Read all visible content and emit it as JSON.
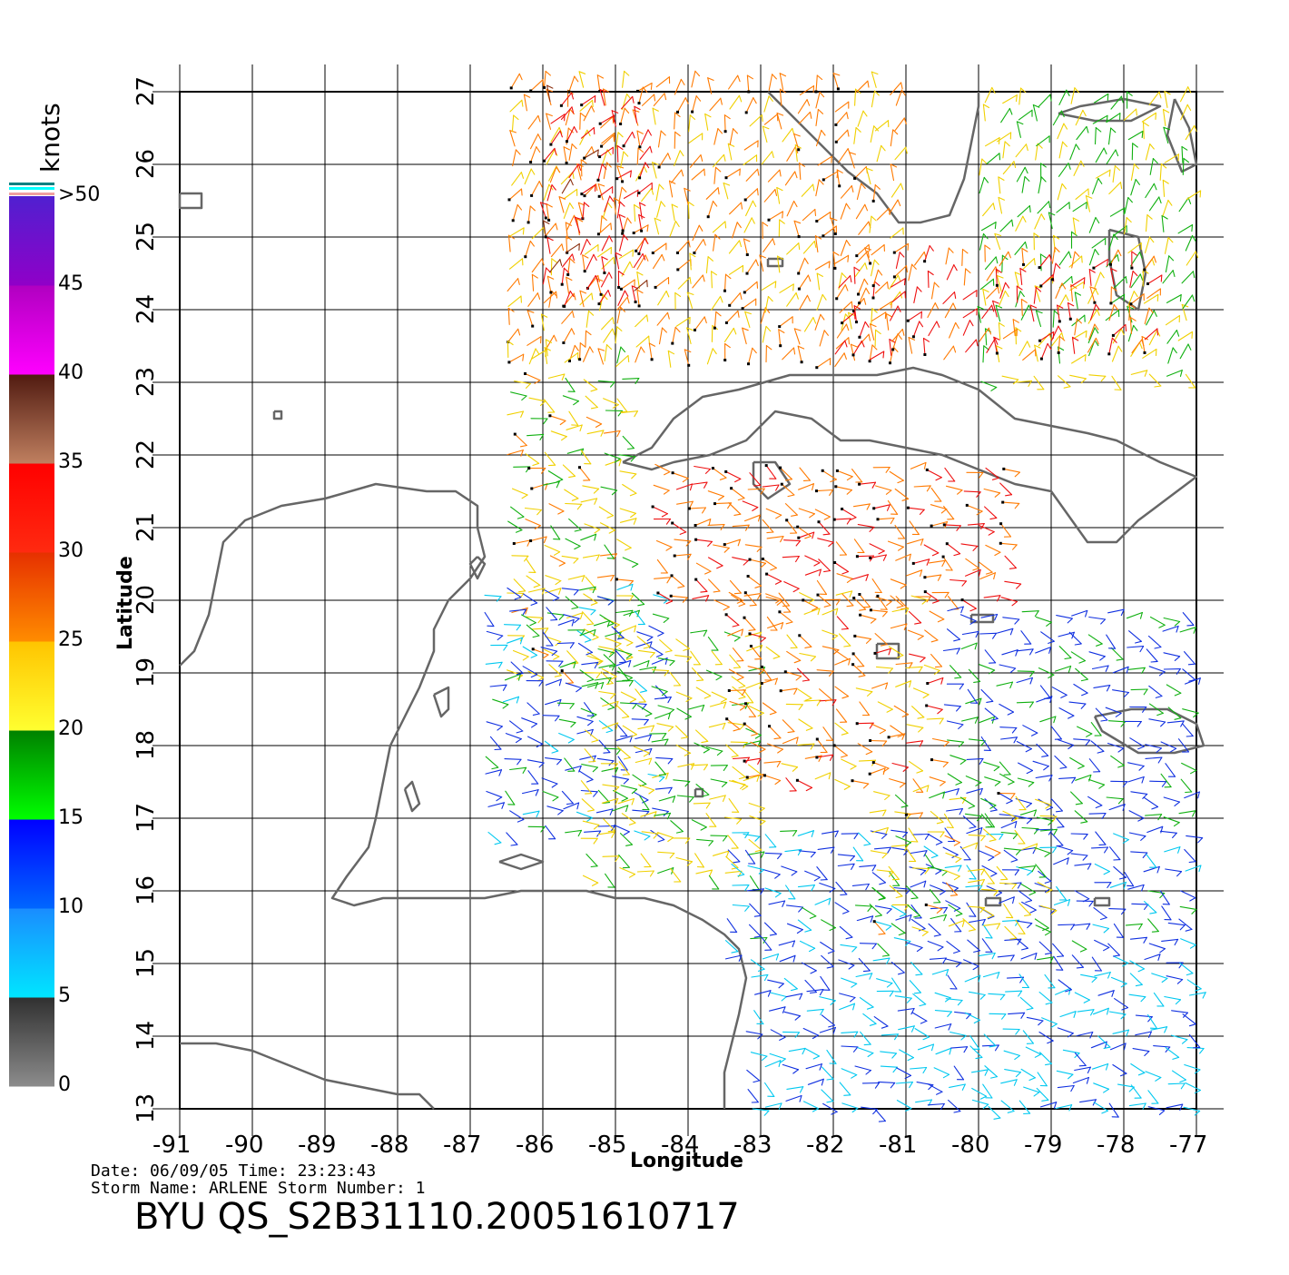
{
  "colorbar": {
    "unit": "knots",
    "labels": [
      "0",
      "5",
      "10",
      "15",
      "20",
      "25",
      "30",
      "35",
      "40",
      "45",
      ">50"
    ],
    "bands": [
      {
        "from": 0,
        "to": 5,
        "top": "#303030",
        "bottom": "#8c8c8c"
      },
      {
        "from": 5,
        "to": 10,
        "top": "#1a8cff",
        "bottom": "#00e6ff"
      },
      {
        "from": 10,
        "to": 15,
        "top": "#0000ff",
        "bottom": "#0066ff"
      },
      {
        "from": 15,
        "to": 20,
        "top": "#008000",
        "bottom": "#00ff00"
      },
      {
        "from": 20,
        "to": 25,
        "top": "#ffc400",
        "bottom": "#ffff30"
      },
      {
        "from": 25,
        "to": 30,
        "top": "#e63000",
        "bottom": "#ff8c00"
      },
      {
        "from": 30,
        "to": 35,
        "top": "#ff0000",
        "bottom": "#ff2a10"
      },
      {
        "from": 35,
        "to": 40,
        "top": "#501a10",
        "bottom": "#c08060"
      },
      {
        "from": 40,
        "to": 45,
        "top": "#b000c0",
        "bottom": "#ff00ff"
      },
      {
        "from": 45,
        "to": 50,
        "top": "#5020d0",
        "bottom": "#9000c8"
      }
    ]
  },
  "map": {
    "lon_min": -91,
    "lon_max": -77,
    "lat_min": 13,
    "lat_max": 27,
    "x_ticks": [
      "-91",
      "-90",
      "-89",
      "-88",
      "-87",
      "-86",
      "-85",
      "-84",
      "-83",
      "-82",
      "-81",
      "-80",
      "-79",
      "-78",
      "-77"
    ],
    "y_ticks": [
      "13",
      "14",
      "15",
      "16",
      "17",
      "18",
      "19",
      "20",
      "21",
      "22",
      "23",
      "24",
      "25",
      "26",
      "27"
    ],
    "xlabel": "Longitude",
    "ylabel": "Latitude",
    "coastline_color": "#666666",
    "flag_color": "#000000"
  },
  "info": {
    "date_line": "Date: 06/09/05   Time: 23:23:43",
    "storm_line": "Storm Name: ARLENE   Storm Number: 1",
    "title": "BYU QS_S2B31110.20051610717"
  },
  "coastlines": [
    {
      "name": "yucatan-central-america",
      "points": [
        [
          -91,
          19.1
        ],
        [
          -90.8,
          19.3
        ],
        [
          -90.6,
          19.8
        ],
        [
          -90.5,
          20.3
        ],
        [
          -90.4,
          20.8
        ],
        [
          -90.1,
          21.1
        ],
        [
          -89.6,
          21.3
        ],
        [
          -89.0,
          21.4
        ],
        [
          -88.3,
          21.6
        ],
        [
          -87.6,
          21.5
        ],
        [
          -87.2,
          21.5
        ],
        [
          -86.9,
          21.3
        ],
        [
          -86.9,
          21.0
        ],
        [
          -86.8,
          20.6
        ],
        [
          -87.0,
          20.3
        ],
        [
          -87.3,
          20.0
        ],
        [
          -87.5,
          19.6
        ],
        [
          -87.5,
          19.3
        ],
        [
          -87.7,
          18.8
        ],
        [
          -87.9,
          18.4
        ],
        [
          -88.1,
          18.0
        ],
        [
          -88.2,
          17.5
        ],
        [
          -88.3,
          17.0
        ],
        [
          -88.4,
          16.6
        ],
        [
          -88.7,
          16.2
        ],
        [
          -88.9,
          15.9
        ],
        [
          -88.6,
          15.8
        ],
        [
          -88.2,
          15.9
        ],
        [
          -87.8,
          15.9
        ],
        [
          -87.3,
          15.9
        ],
        [
          -86.8,
          15.9
        ],
        [
          -86.3,
          16.0
        ],
        [
          -85.9,
          16.0
        ],
        [
          -85.4,
          16.0
        ],
        [
          -85.0,
          15.9
        ],
        [
          -84.6,
          15.9
        ],
        [
          -84.2,
          15.8
        ],
        [
          -83.8,
          15.6
        ],
        [
          -83.5,
          15.4
        ],
        [
          -83.3,
          15.2
        ],
        [
          -83.2,
          14.8
        ],
        [
          -83.3,
          14.3
        ],
        [
          -83.4,
          13.9
        ],
        [
          -83.5,
          13.5
        ],
        [
          -83.5,
          13.0
        ]
      ]
    },
    {
      "name": "pacific-coast",
      "points": [
        [
          -91,
          13.9
        ],
        [
          -90.5,
          13.9
        ],
        [
          -90.0,
          13.8
        ],
        [
          -89.5,
          13.6
        ],
        [
          -89.0,
          13.4
        ],
        [
          -88.5,
          13.3
        ],
        [
          -88.0,
          13.2
        ],
        [
          -87.7,
          13.2
        ],
        [
          -87.5,
          13.0
        ]
      ]
    },
    {
      "name": "cuba",
      "points": [
        [
          -84.9,
          21.9
        ],
        [
          -84.5,
          22.1
        ],
        [
          -84.2,
          22.5
        ],
        [
          -83.8,
          22.8
        ],
        [
          -83.3,
          22.9
        ],
        [
          -82.6,
          23.1
        ],
        [
          -82.0,
          23.1
        ],
        [
          -81.4,
          23.1
        ],
        [
          -80.9,
          23.2
        ],
        [
          -80.5,
          23.1
        ],
        [
          -80.0,
          22.9
        ],
        [
          -79.5,
          22.5
        ],
        [
          -79.0,
          22.4
        ],
        [
          -78.5,
          22.3
        ],
        [
          -78.1,
          22.2
        ],
        [
          -77.5,
          21.9
        ],
        [
          -77.0,
          21.7
        ],
        [
          -77.4,
          21.4
        ],
        [
          -77.8,
          21.1
        ],
        [
          -78.1,
          20.8
        ],
        [
          -78.5,
          20.8
        ],
        [
          -79.0,
          21.5
        ],
        [
          -79.5,
          21.6
        ],
        [
          -80.0,
          21.8
        ],
        [
          -80.5,
          22.0
        ],
        [
          -81.0,
          22.1
        ],
        [
          -81.5,
          22.2
        ],
        [
          -81.9,
          22.2
        ],
        [
          -82.3,
          22.5
        ],
        [
          -82.8,
          22.6
        ],
        [
          -83.2,
          22.2
        ],
        [
          -83.7,
          22.0
        ],
        [
          -84.2,
          21.9
        ],
        [
          -84.5,
          21.8
        ],
        [
          -84.9,
          21.9
        ]
      ]
    },
    {
      "name": "florida",
      "points": [
        [
          -82.9,
          27.0
        ],
        [
          -82.6,
          26.7
        ],
        [
          -82.2,
          26.3
        ],
        [
          -81.8,
          25.9
        ],
        [
          -81.4,
          25.6
        ],
        [
          -81.1,
          25.2
        ],
        [
          -80.8,
          25.2
        ],
        [
          -80.4,
          25.3
        ],
        [
          -80.2,
          25.8
        ],
        [
          -80.1,
          26.3
        ],
        [
          -80.0,
          26.8
        ],
        [
          -80.0,
          27.0
        ]
      ]
    },
    {
      "name": "jamaica",
      "points": [
        [
          -78.4,
          18.4
        ],
        [
          -77.9,
          18.5
        ],
        [
          -77.4,
          18.5
        ],
        [
          -77.0,
          18.3
        ],
        [
          -76.9,
          18.0
        ],
        [
          -77.3,
          17.9
        ],
        [
          -77.8,
          17.9
        ],
        [
          -78.3,
          18.2
        ],
        [
          -78.4,
          18.4
        ]
      ]
    },
    {
      "name": "andros",
      "points": [
        [
          -78.2,
          25.1
        ],
        [
          -77.8,
          25.0
        ],
        [
          -77.7,
          24.5
        ],
        [
          -77.8,
          24.0
        ],
        [
          -78.1,
          24.2
        ],
        [
          -78.2,
          24.7
        ],
        [
          -78.2,
          25.1
        ]
      ]
    },
    {
      "name": "grand-bahama",
      "points": [
        [
          -78.9,
          26.7
        ],
        [
          -78.4,
          26.6
        ],
        [
          -77.9,
          26.6
        ],
        [
          -77.5,
          26.8
        ],
        [
          -78.0,
          26.9
        ],
        [
          -78.6,
          26.8
        ],
        [
          -78.9,
          26.7
        ]
      ]
    },
    {
      "name": "abaco",
      "points": [
        [
          -77.3,
          26.9
        ],
        [
          -77.1,
          26.5
        ],
        [
          -77.0,
          26.0
        ],
        [
          -77.2,
          25.9
        ],
        [
          -77.4,
          26.4
        ],
        [
          -77.3,
          26.9
        ]
      ]
    },
    {
      "name": "isla-juventud",
      "points": [
        [
          -83.1,
          21.9
        ],
        [
          -82.8,
          21.9
        ],
        [
          -82.6,
          21.6
        ],
        [
          -82.9,
          21.4
        ],
        [
          -83.1,
          21.6
        ],
        [
          -83.1,
          21.9
        ]
      ]
    },
    {
      "name": "grand-cayman",
      "points": [
        [
          -81.4,
          19.4
        ],
        [
          -81.1,
          19.4
        ],
        [
          -81.1,
          19.2
        ],
        [
          -81.4,
          19.2
        ],
        [
          -81.4,
          19.4
        ]
      ]
    },
    {
      "name": "cayman-brac",
      "points": [
        [
          -80.1,
          19.8
        ],
        [
          -79.8,
          19.8
        ],
        [
          -79.8,
          19.7
        ],
        [
          -80.1,
          19.7
        ],
        [
          -80.1,
          19.8
        ]
      ]
    },
    {
      "name": "cozumel",
      "points": [
        [
          -86.9,
          20.6
        ],
        [
          -86.8,
          20.5
        ],
        [
          -86.9,
          20.3
        ],
        [
          -87.0,
          20.5
        ],
        [
          -86.9,
          20.6
        ]
      ]
    },
    {
      "name": "bay-islands",
      "points": [
        [
          -86.6,
          16.4
        ],
        [
          -86.3,
          16.5
        ],
        [
          -86.0,
          16.4
        ],
        [
          -86.3,
          16.3
        ],
        [
          -86.6,
          16.4
        ]
      ]
    },
    {
      "name": "swan-islands",
      "points": [
        [
          -83.9,
          17.4
        ],
        [
          -83.8,
          17.4
        ],
        [
          -83.8,
          17.3
        ],
        [
          -83.9,
          17.3
        ],
        [
          -83.9,
          17.4
        ]
      ]
    },
    {
      "name": "turneffe",
      "points": [
        [
          -87.9,
          17.4
        ],
        [
          -87.8,
          17.5
        ],
        [
          -87.7,
          17.2
        ],
        [
          -87.8,
          17.1
        ],
        [
          -87.9,
          17.4
        ]
      ]
    },
    {
      "name": "banco-chinchorro",
      "points": [
        [
          -87.5,
          18.7
        ],
        [
          -87.3,
          18.8
        ],
        [
          -87.3,
          18.5
        ],
        [
          -87.4,
          18.4
        ],
        [
          -87.5,
          18.7
        ]
      ]
    },
    {
      "name": "dry-tortugas",
      "points": [
        [
          -82.9,
          24.7
        ],
        [
          -82.7,
          24.7
        ],
        [
          -82.7,
          24.6
        ],
        [
          -82.9,
          24.6
        ],
        [
          -82.9,
          24.7
        ]
      ]
    },
    {
      "name": "alacranes",
      "points": [
        [
          -89.7,
          22.6
        ],
        [
          -89.6,
          22.6
        ],
        [
          -89.6,
          22.5
        ],
        [
          -89.7,
          22.5
        ],
        [
          -89.7,
          22.6
        ]
      ]
    },
    {
      "name": "arrecifes",
      "points": [
        [
          -91.0,
          25.6
        ],
        [
          -90.7,
          25.6
        ],
        [
          -90.7,
          25.4
        ],
        [
          -91.0,
          25.4
        ],
        [
          -91.0,
          25.6
        ]
      ]
    },
    {
      "name": "serranilla",
      "points": [
        [
          -79.9,
          15.9
        ],
        [
          -79.7,
          15.9
        ],
        [
          -79.7,
          15.8
        ],
        [
          -79.9,
          15.8
        ],
        [
          -79.9,
          15.9
        ]
      ]
    },
    {
      "name": "pedro-bank",
      "points": [
        [
          -78.4,
          15.9
        ],
        [
          -78.2,
          15.9
        ],
        [
          -78.2,
          15.8
        ],
        [
          -78.4,
          15.8
        ],
        [
          -78.4,
          15.9
        ]
      ]
    }
  ],
  "wind_regions": [
    {
      "lon_min": -86.5,
      "lon_max": -81.0,
      "lat_min": 23.2,
      "lat_max": 27.0,
      "speed": 26
    },
    {
      "lon_min": -86.0,
      "lon_max": -84.5,
      "lat_min": 24.0,
      "lat_max": 27.0,
      "speed": 32
    },
    {
      "lon_min": -80.0,
      "lon_max": -77.0,
      "lat_min": 23.0,
      "lat_max": 27.0,
      "speed": 20
    },
    {
      "lon_min": -82.0,
      "lon_max": -77.5,
      "lat_min": 23.3,
      "lat_max": 24.8,
      "speed": 30
    },
    {
      "lon_min": -86.5,
      "lon_max": -84.8,
      "lat_min": 19.0,
      "lat_max": 23.3,
      "speed": 22
    },
    {
      "lon_min": -86.8,
      "lon_max": -84.5,
      "lat_min": 16.8,
      "lat_max": 20.2,
      "speed": 13
    },
    {
      "lon_min": -85.5,
      "lon_max": -83.0,
      "lat_min": 16.2,
      "lat_max": 19.5,
      "speed": 21
    },
    {
      "lon_min": -84.5,
      "lon_max": -79.5,
      "lat_min": 20.0,
      "lat_max": 22.0,
      "speed": 29
    },
    {
      "lon_min": -83.5,
      "lon_max": -80.5,
      "lat_min": 17.5,
      "lat_max": 20.2,
      "speed": 27
    },
    {
      "lon_min": -80.5,
      "lon_max": -77.0,
      "lat_min": 17.0,
      "lat_max": 20.0,
      "speed": 14
    },
    {
      "lon_min": -83.5,
      "lon_max": -77.0,
      "lat_min": 15.0,
      "lat_max": 17.0,
      "speed": 12
    },
    {
      "lon_min": -83.2,
      "lon_max": -77.0,
      "lat_min": 13.0,
      "lat_max": 15.0,
      "speed": 9
    },
    {
      "lon_min": -81.5,
      "lon_max": -79.0,
      "lat_min": 15.5,
      "lat_max": 17.5,
      "speed": 22
    }
  ]
}
